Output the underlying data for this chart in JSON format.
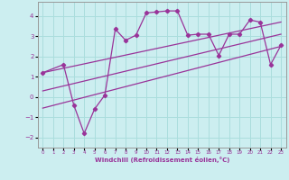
{
  "xlabel": "Windchill (Refroidissement éolien,°C)",
  "bg_color": "#cceef0",
  "line_color": "#993399",
  "grid_color": "#aadddd",
  "xlim": [
    -0.5,
    23.5
  ],
  "ylim": [
    -2.5,
    4.7
  ],
  "xticks": [
    0,
    1,
    2,
    3,
    4,
    5,
    6,
    7,
    8,
    9,
    10,
    11,
    12,
    13,
    14,
    15,
    16,
    17,
    18,
    19,
    20,
    21,
    22,
    23
  ],
  "yticks": [
    -2,
    -1,
    0,
    1,
    2,
    3,
    4
  ],
  "zigzag_x": [
    0,
    2,
    3,
    4,
    5,
    6,
    7,
    8,
    9,
    10,
    11,
    12,
    13,
    14,
    15,
    16,
    17,
    18,
    19,
    20,
    21,
    22,
    23
  ],
  "zigzag_y": [
    1.2,
    1.6,
    -0.4,
    -1.8,
    -0.6,
    0.1,
    3.35,
    2.8,
    3.05,
    4.15,
    4.2,
    4.25,
    4.25,
    3.05,
    3.1,
    3.1,
    2.05,
    3.1,
    3.1,
    3.8,
    3.7,
    1.6,
    2.55
  ],
  "upper_line_x": [
    0,
    23
  ],
  "upper_line_y": [
    1.2,
    3.7
  ],
  "lower_line_x": [
    0,
    23
  ],
  "lower_line_y": [
    -0.55,
    2.5
  ],
  "mid_line_x": [
    0,
    23
  ],
  "mid_line_y": [
    0.3,
    3.1
  ]
}
